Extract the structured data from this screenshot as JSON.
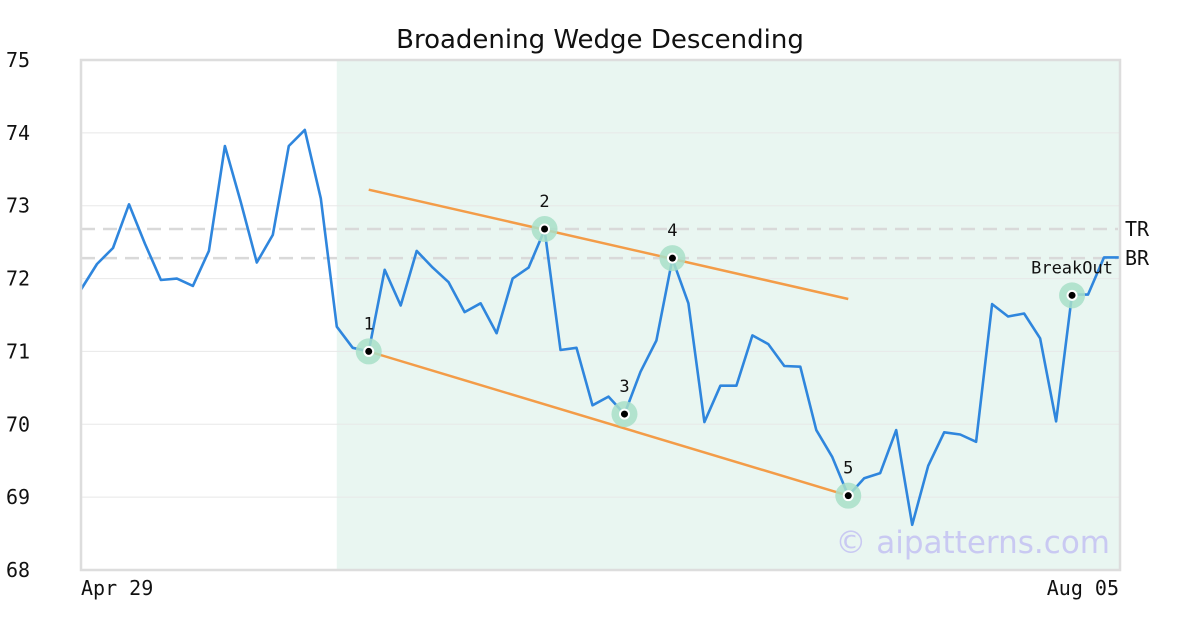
{
  "chart_data": {
    "type": "line",
    "title": "Broadening Wedge Descending",
    "x_start_label": "Apr 29",
    "x_end_label": "Aug 05",
    "ylim": [
      68,
      75
    ],
    "yticks": [
      68,
      69,
      70,
      71,
      72,
      73,
      74,
      75
    ],
    "grid": true,
    "series": [
      {
        "values": [
          71.85,
          72.2,
          72.42,
          73.02,
          72.48,
          71.98,
          72.0,
          71.9,
          72.38,
          73.82,
          73.05,
          72.22,
          72.6,
          73.82,
          74.04,
          73.1,
          71.34,
          71.05,
          71.0,
          72.12,
          71.63,
          72.38,
          72.15,
          71.95,
          71.54,
          71.66,
          71.25,
          72.0,
          72.15,
          72.67,
          71.02,
          71.05,
          70.26,
          70.38,
          70.14,
          70.72,
          71.15,
          72.27,
          71.66,
          70.03,
          70.53,
          70.53,
          71.22,
          71.1,
          70.8,
          70.79,
          69.92,
          69.55,
          69.02,
          69.26,
          69.33,
          69.92,
          68.62,
          69.43,
          69.89,
          69.86,
          69.76,
          71.65,
          71.48,
          71.52,
          71.18,
          70.04,
          71.78,
          71.78,
          72.29,
          72.29
        ]
      }
    ],
    "shaded_region": {
      "from_index": 16,
      "to_index": 65
    },
    "trendlines": [
      {
        "from": {
          "index": 18,
          "y": 73.22
        },
        "to": {
          "index": 48,
          "y": 71.72
        }
      },
      {
        "from": {
          "index": 18,
          "y": 71.0
        },
        "to": {
          "index": 48,
          "y": 69.02
        }
      }
    ],
    "pattern_points": [
      {
        "label": "1",
        "index": 18,
        "y": 71.0
      },
      {
        "label": "2",
        "index": 29,
        "y": 72.68
      },
      {
        "label": "3",
        "index": 34,
        "y": 70.14
      },
      {
        "label": "4",
        "index": 37,
        "y": 72.28
      },
      {
        "label": "5",
        "index": 48,
        "y": 69.02
      },
      {
        "label": "BreakOut",
        "index": 62,
        "y": 71.77
      }
    ],
    "reference_lines": [
      {
        "label": "TR",
        "y": 72.68
      },
      {
        "label": "BR",
        "y": 72.28
      }
    ],
    "watermark": "© aipatterns.com",
    "colors": {
      "line": "#2f86dd",
      "trendline": "#f39c48",
      "shade": "#e9f6f1",
      "marker_halo": "#a8dfc8",
      "reference": "#d9d9d9"
    }
  }
}
